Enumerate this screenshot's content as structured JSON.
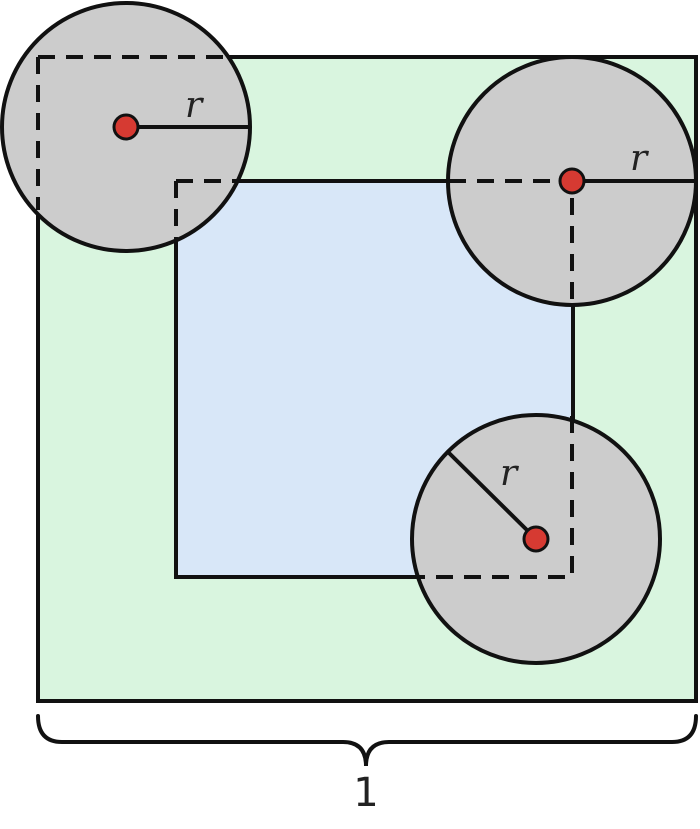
{
  "labels": {
    "radius": "r",
    "dimension": "1"
  },
  "colors": {
    "outer_square_fill": "#d9f5df",
    "inner_square_fill": "#d8e7f8",
    "circle_fill": "#cccccc",
    "center_dot": "#d63a32",
    "stroke": "#111111"
  }
}
